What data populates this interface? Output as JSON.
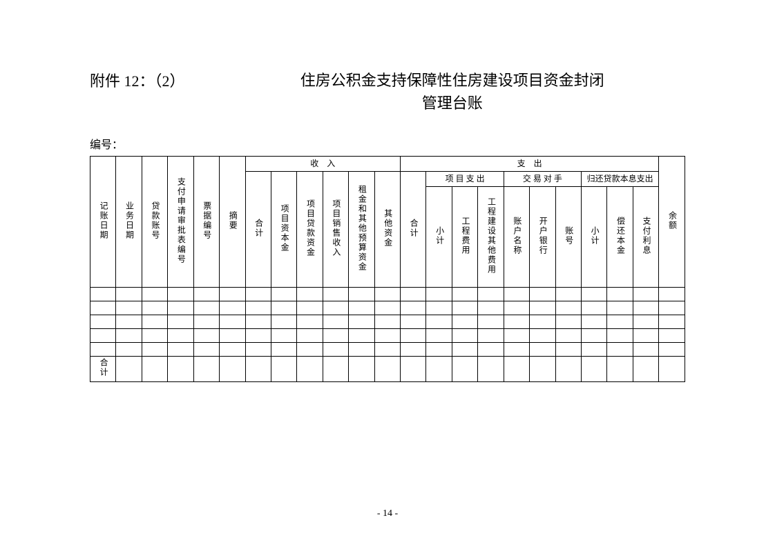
{
  "attachment_label": "附件 12：（2）",
  "title_line1": "住房公积金支持保障性住房建设项目资金封闭",
  "title_line2": "管理台账",
  "serial_label": "编号：",
  "headers": {
    "income_group": "收　入",
    "expense_group": "支　出",
    "project_expense": "项 目 支 出",
    "counterparty": "交 易 对 手",
    "loan_repay": "归还贷款本息支出",
    "col1": "记账日期",
    "col2": "业务日期",
    "col3": "贷款账号",
    "col4": "支付申请审批表编号",
    "col5": "票据编号",
    "col6": "摘要",
    "col7": "合计",
    "col8": "项目资本金",
    "col9": "项目贷款资金",
    "col10": "项目销售收入",
    "col11": "租金和其他预算资金",
    "col12": "其他资金",
    "col13": "合计",
    "col14": "小计",
    "col15": "工程费用",
    "col16": "工程建设其他费用",
    "col17": "账户名称",
    "col18": "开户银行",
    "col19": "账号",
    "col20": "小计",
    "col21": "偿还本金",
    "col22": "支付利息",
    "col23": "余额"
  },
  "total_label": "合计",
  "page_number": "- 14 -",
  "data_rows": 5,
  "column_count": 23
}
